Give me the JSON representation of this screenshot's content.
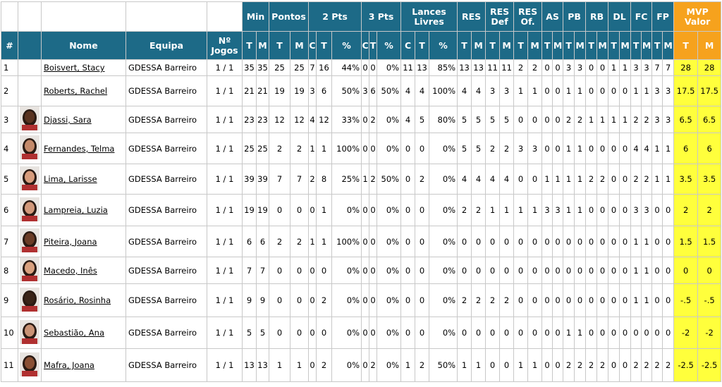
{
  "table": {
    "groups": [
      "Min",
      "Pontos",
      "2 Pts",
      "3 Pts",
      "Lances Livres",
      "RES",
      "RES Def",
      "RES Of.",
      "AS",
      "PB",
      "RB",
      "DL",
      "FC",
      "FP",
      "MVP Valor"
    ],
    "columns": [
      "#",
      "Nome",
      "Equipa",
      "Nº Jogos"
    ],
    "subcolumns": [
      "T",
      "M",
      "T",
      "M",
      "C",
      "T",
      "%",
      "C",
      "T",
      "%",
      "C",
      "T",
      "%",
      "T",
      "M",
      "T",
      "M",
      "T",
      "M",
      "T",
      "M",
      "T",
      "M",
      "T",
      "M",
      "T",
      "M",
      "T",
      "M",
      "T",
      "M",
      "T",
      "M"
    ],
    "rows": [
      {
        "num": "1",
        "name": "Boisvert, Stacy",
        "team": "GDESSA Barreiro",
        "games": "1 / 1",
        "stats": [
          "35",
          "35",
          "25",
          "25",
          "7",
          "16",
          "44%",
          "0",
          "0",
          "0%",
          "11",
          "13",
          "85%",
          "13",
          "13",
          "11",
          "11",
          "2",
          "2",
          "0",
          "0",
          "3",
          "3",
          "0",
          "0",
          "1",
          "1",
          "3",
          "3",
          "7",
          "7",
          "28",
          "28"
        ]
      },
      {
        "num": "2",
        "name": "Roberts, Rachel",
        "team": "GDESSA Barreiro",
        "games": "1 / 1",
        "stats": [
          "21",
          "21",
          "19",
          "19",
          "3",
          "6",
          "50%",
          "3",
          "6",
          "50%",
          "4",
          "4",
          "100%",
          "4",
          "4",
          "3",
          "3",
          "1",
          "1",
          "0",
          "0",
          "1",
          "1",
          "0",
          "0",
          "0",
          "0",
          "1",
          "1",
          "3",
          "3",
          "17.5",
          "17.5"
        ]
      },
      {
        "num": "3",
        "name": "Djassi, Sara",
        "team": "GDESSA Barreiro",
        "games": "1 / 1",
        "stats": [
          "23",
          "23",
          "12",
          "12",
          "4",
          "12",
          "33%",
          "0",
          "2",
          "0%",
          "4",
          "5",
          "80%",
          "5",
          "5",
          "5",
          "5",
          "0",
          "0",
          "0",
          "0",
          "2",
          "2",
          "1",
          "1",
          "1",
          "1",
          "2",
          "2",
          "3",
          "3",
          "6.5",
          "6.5"
        ]
      },
      {
        "num": "4",
        "name": "Fernandes, Telma",
        "team": "GDESSA Barreiro",
        "games": "1 / 1",
        "stats": [
          "25",
          "25",
          "2",
          "2",
          "1",
          "1",
          "100%",
          "0",
          "0",
          "0%",
          "0",
          "0",
          "0%",
          "5",
          "5",
          "2",
          "2",
          "3",
          "3",
          "0",
          "0",
          "1",
          "1",
          "0",
          "0",
          "0",
          "0",
          "4",
          "4",
          "1",
          "1",
          "6",
          "6"
        ]
      },
      {
        "num": "5",
        "name": "Lima, Larisse",
        "team": "GDESSA Barreiro",
        "games": "1 / 1",
        "stats": [
          "39",
          "39",
          "7",
          "7",
          "2",
          "8",
          "25%",
          "1",
          "2",
          "50%",
          "0",
          "2",
          "0%",
          "4",
          "4",
          "4",
          "4",
          "0",
          "0",
          "1",
          "1",
          "1",
          "1",
          "2",
          "2",
          "0",
          "0",
          "2",
          "2",
          "1",
          "1",
          "3.5",
          "3.5"
        ]
      },
      {
        "num": "6",
        "name": "Lampreia, Luzia",
        "team": "GDESSA Barreiro",
        "games": "1 / 1",
        "stats": [
          "19",
          "19",
          "0",
          "0",
          "0",
          "1",
          "0%",
          "0",
          "0",
          "0%",
          "0",
          "0",
          "0%",
          "2",
          "2",
          "1",
          "1",
          "1",
          "1",
          "3",
          "3",
          "1",
          "1",
          "0",
          "0",
          "0",
          "0",
          "3",
          "3",
          "0",
          "0",
          "2",
          "2"
        ]
      },
      {
        "num": "7",
        "name": "Piteira, Joana",
        "team": "GDESSA Barreiro",
        "games": "1 / 1",
        "stats": [
          "6",
          "6",
          "2",
          "2",
          "1",
          "1",
          "100%",
          "0",
          "0",
          "0%",
          "0",
          "0",
          "0%",
          "0",
          "0",
          "0",
          "0",
          "0",
          "0",
          "0",
          "0",
          "0",
          "0",
          "0",
          "0",
          "0",
          "0",
          "1",
          "1",
          "0",
          "0",
          "1.5",
          "1.5"
        ]
      },
      {
        "num": "8",
        "name": "Macedo, Inês",
        "team": "GDESSA Barreiro",
        "games": "1 / 1",
        "stats": [
          "7",
          "7",
          "0",
          "0",
          "0",
          "0",
          "0%",
          "0",
          "0",
          "0%",
          "0",
          "0",
          "0%",
          "0",
          "0",
          "0",
          "0",
          "0",
          "0",
          "0",
          "0",
          "0",
          "0",
          "0",
          "0",
          "0",
          "0",
          "1",
          "1",
          "0",
          "0",
          "0",
          "0"
        ]
      },
      {
        "num": "9",
        "name": "Rosário, Rosinha",
        "team": "GDESSA Barreiro",
        "games": "1 / 1",
        "stats": [
          "9",
          "9",
          "0",
          "0",
          "0",
          "2",
          "0%",
          "0",
          "0",
          "0%",
          "0",
          "0",
          "0%",
          "2",
          "2",
          "2",
          "2",
          "0",
          "0",
          "0",
          "0",
          "0",
          "0",
          "0",
          "0",
          "0",
          "0",
          "1",
          "1",
          "0",
          "0",
          "-.5",
          "-.5"
        ]
      },
      {
        "num": "10",
        "name": "Sebastião, Ana",
        "team": "GDESSA Barreiro",
        "games": "1 / 1",
        "stats": [
          "5",
          "5",
          "0",
          "0",
          "0",
          "0",
          "0%",
          "0",
          "0",
          "0%",
          "0",
          "0",
          "0%",
          "0",
          "0",
          "0",
          "0",
          "0",
          "0",
          "0",
          "0",
          "1",
          "1",
          "0",
          "0",
          "0",
          "0",
          "0",
          "0",
          "0",
          "0",
          "-2",
          "-2"
        ]
      },
      {
        "num": "11",
        "name": "Mafra, Joana",
        "team": "GDESSA Barreiro",
        "games": "1 / 1",
        "stats": [
          "13",
          "13",
          "1",
          "1",
          "0",
          "2",
          "0%",
          "0",
          "2",
          "0%",
          "1",
          "2",
          "50%",
          "1",
          "1",
          "0",
          "0",
          "1",
          "1",
          "0",
          "0",
          "2",
          "2",
          "2",
          "2",
          "0",
          "0",
          "2",
          "2",
          "2",
          "2",
          "-2.5",
          "-2.5"
        ]
      }
    ]
  }
}
